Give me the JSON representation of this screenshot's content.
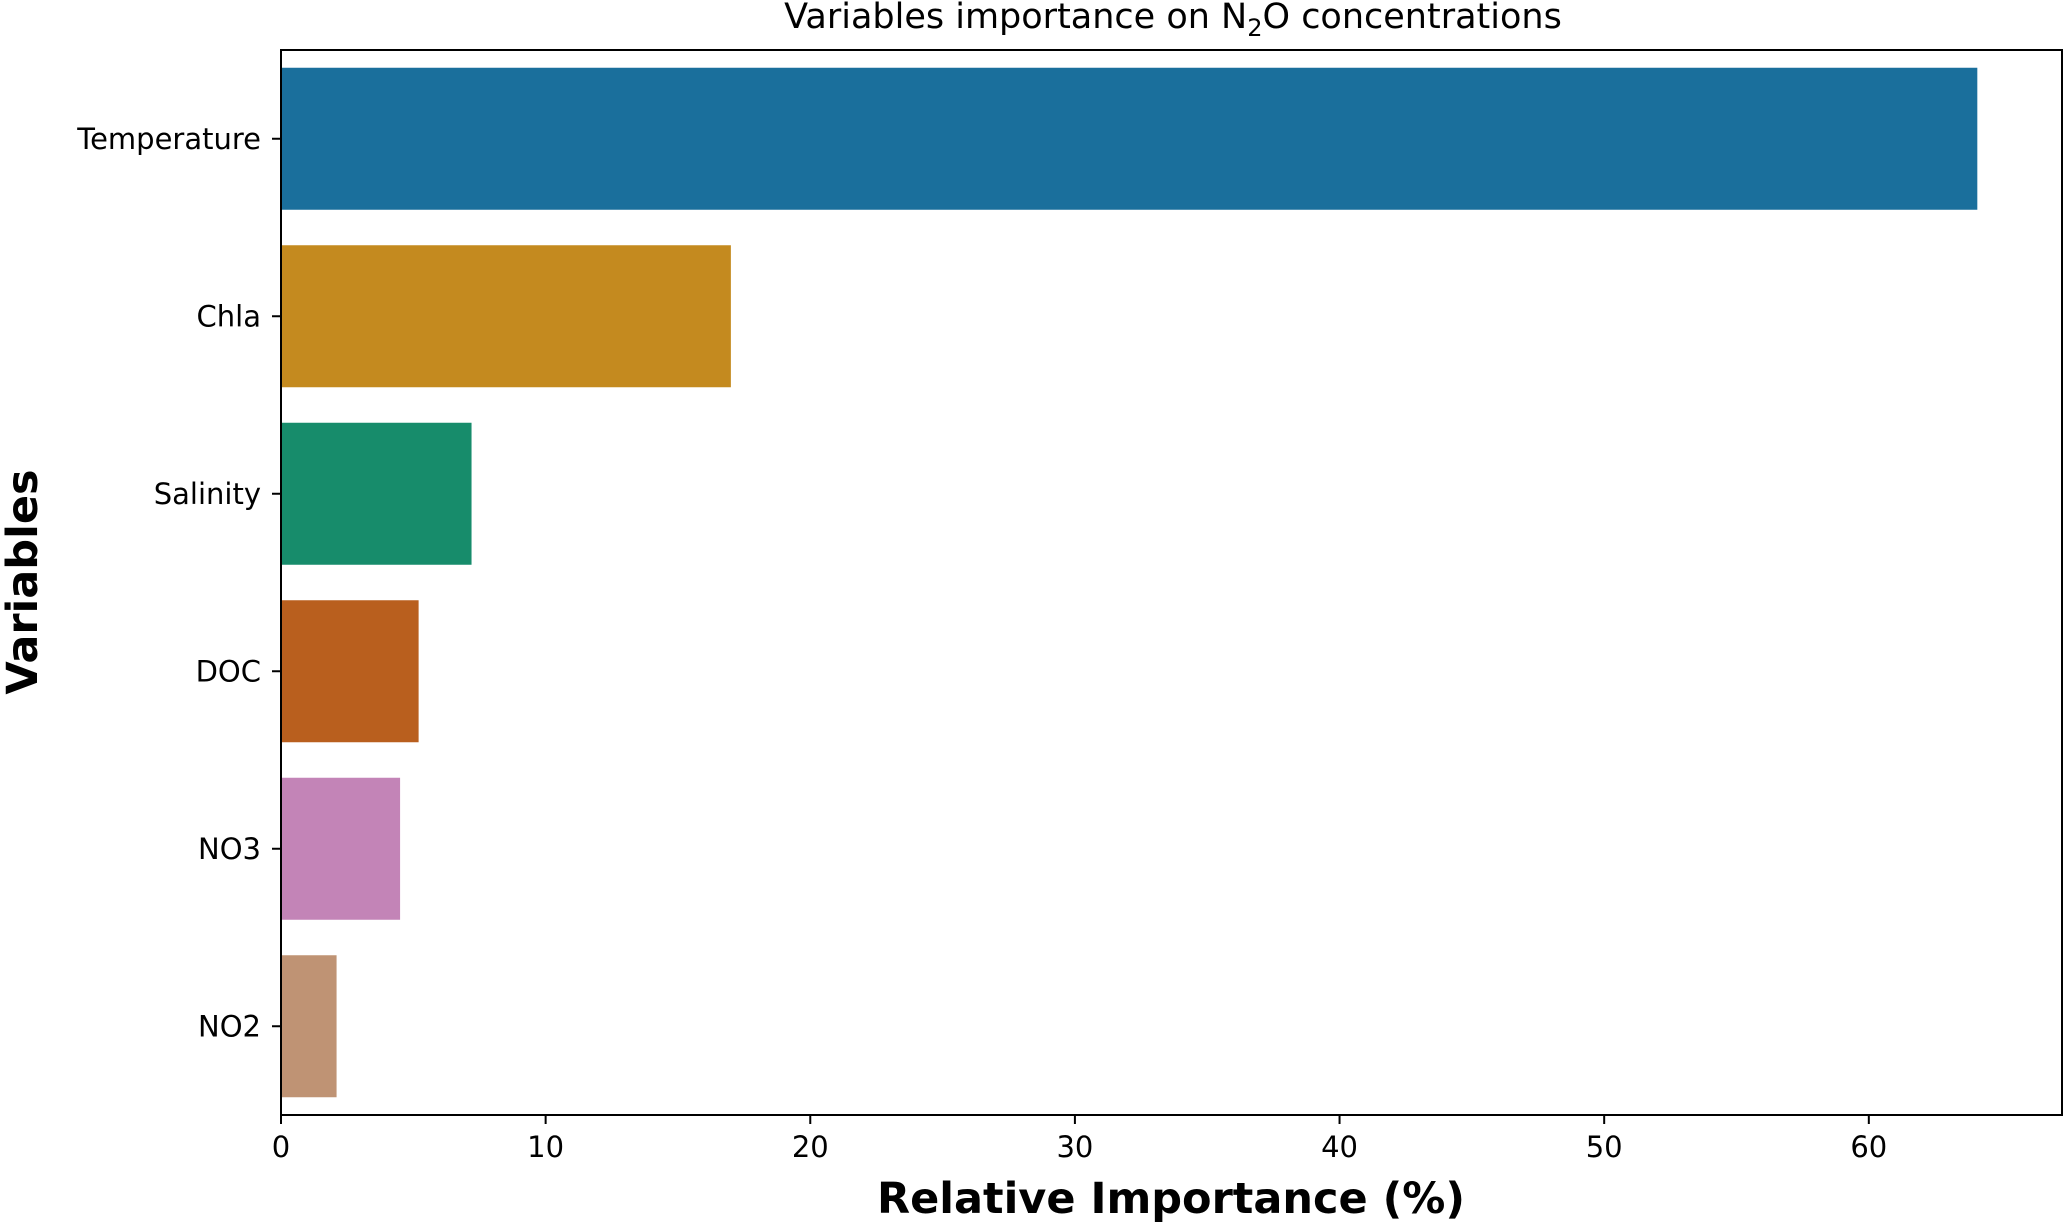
{
  "chart_data": {
    "type": "bar",
    "orientation": "horizontal",
    "title": {
      "prefix": "Variables importance on N",
      "subscript": "2",
      "suffix": "O concentrations"
    },
    "xlabel": "Relative Importance (%)",
    "ylabel": "Variables",
    "categories": [
      "Temperature",
      "Chla",
      "Salinity",
      "DOC",
      "NO3",
      "NO2"
    ],
    "values": [
      64.1,
      17.0,
      7.2,
      5.2,
      4.5,
      2.1
    ],
    "colors": [
      "#1a6f9c",
      "#c48a1f",
      "#178c6b",
      "#b95f1e",
      "#c384b7",
      "#bf9374"
    ],
    "xlim": [
      0,
      67.3
    ],
    "xticks": [
      0,
      10,
      20,
      30,
      40,
      50,
      60
    ],
    "grid": false,
    "legend": "none"
  }
}
